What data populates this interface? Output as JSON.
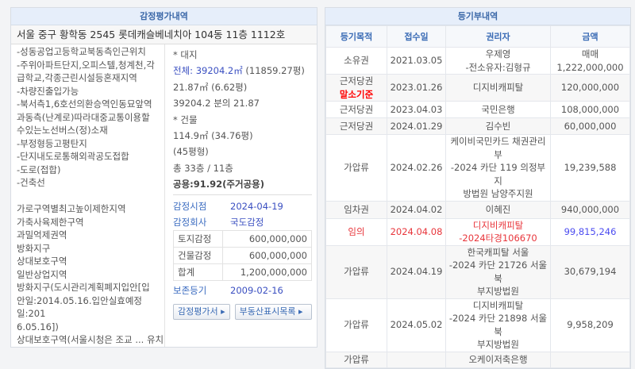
{
  "appraisal": {
    "title": "감정평가내역",
    "address": "서울 중구 황학동 2545 롯데캐슬베네치아 104동 11층 1112호",
    "features": [
      "-성동공업고등학교북동측인근위치",
      "-주위아파트단지,오피스텔,청계천,각",
      "급학교,각종근린시설등혼재지역",
      "-차량진출입가능",
      "-북서측1,6호선의환승역인동묘앞역",
      "과동측(난계로)따라대중교통이용할",
      "수있는노선버스(정)소재",
      "-부정형등고평탄지",
      "-단지내도로통해외곽공도접합",
      "-도로(접합)",
      "-건축선",
      "",
      "가로구역별최고높이제한지역",
      "가축사육제한구역",
      "과밀억제권역",
      "방화지구",
      "상대보호구역",
      "일반상업지역",
      "방화지구(도시관리계획폐지입안[입",
      "안일:2014.05.16.입안실효예정일:201",
      "6.05.16])",
      "상대보호구역(서울시청은 조교 ... 유치"
    ],
    "land_label": "* 대지",
    "land_total": "전체: 39204.2㎡",
    "land_total_pyeong": "(11859.27평)",
    "land_share": "21.87㎡  (6.62평)",
    "land_ratio": "39204.2  분의  21.87",
    "building_label": "* 건물",
    "building_area": "114.9㎡  (34.76평)",
    "building_type": "(45평형)",
    "floors": "총 33층 / 11층",
    "common": "공용:91.92(주거공용)",
    "date_label": "감정시점",
    "date": "2024-04-19",
    "company_label": "감정회사",
    "company": "국도감정",
    "values": [
      {
        "label": "토지감정",
        "value": "600,000,000"
      },
      {
        "label": "건물감정",
        "value": "600,000,000"
      },
      {
        "label": "합계",
        "value": "1,200,000,000"
      }
    ],
    "preserve_label": "보존등기",
    "preserve_date": "2009-02-16",
    "btn_report": "감정평가서 ▸",
    "btn_list": "부동산표시목록  ▸"
  },
  "registry": {
    "title": "등기부내역",
    "headers": [
      "등기목적",
      "접수일",
      "권리자",
      "금액"
    ],
    "rows": [
      {
        "type": "소유권",
        "date": "2021.03.05",
        "holder": "우제영\n-전소유자:김형규",
        "amount": "매매1,222,000,000"
      },
      {
        "type": "근저당권",
        "note": "말소기준",
        "date": "2023.01.26",
        "holder": "디지비캐피탈",
        "amount": "120,000,000"
      },
      {
        "type": "근저당권",
        "date": "2023.04.03",
        "holder": "국민은행",
        "amount": "108,000,000"
      },
      {
        "type": "근저당권",
        "date": "2024.01.29",
        "holder": "김수빈",
        "amount": "60,000,000"
      },
      {
        "type": "가압류",
        "date": "2024.02.26",
        "holder": "케이비국민카드 채권관리\n부\n-2024 카단 119 의정부지\n방법원 남양주지원",
        "amount": "19,239,588"
      },
      {
        "type": "임차권",
        "date": "2024.04.02",
        "holder": "이혜진",
        "amount": "940,000,000"
      },
      {
        "type": "임의",
        "date": "2024.04.08",
        "holder": "디지비캐피탈\n-2024타경106670",
        "amount": "99,815,246",
        "highlight": true
      },
      {
        "type": "가압류",
        "date": "2024.04.19",
        "holder": "한국캐피탈 서울\n-2024 카단 21726 서울북\n부지방법원",
        "amount": "30,679,194"
      },
      {
        "type": "가압류",
        "date": "2024.05.02",
        "holder": "디지비캐피탈\n-2024 카단 21898 서울북\n부지방법원",
        "amount": "9,958,209"
      },
      {
        "type": "가압류",
        "date": "",
        "holder": "오케이저축은행",
        "amount": ""
      }
    ]
  },
  "colors": {
    "accent": "#3a6bb5",
    "red": "#e8353b",
    "blue_amount": "#4b4bf0"
  }
}
